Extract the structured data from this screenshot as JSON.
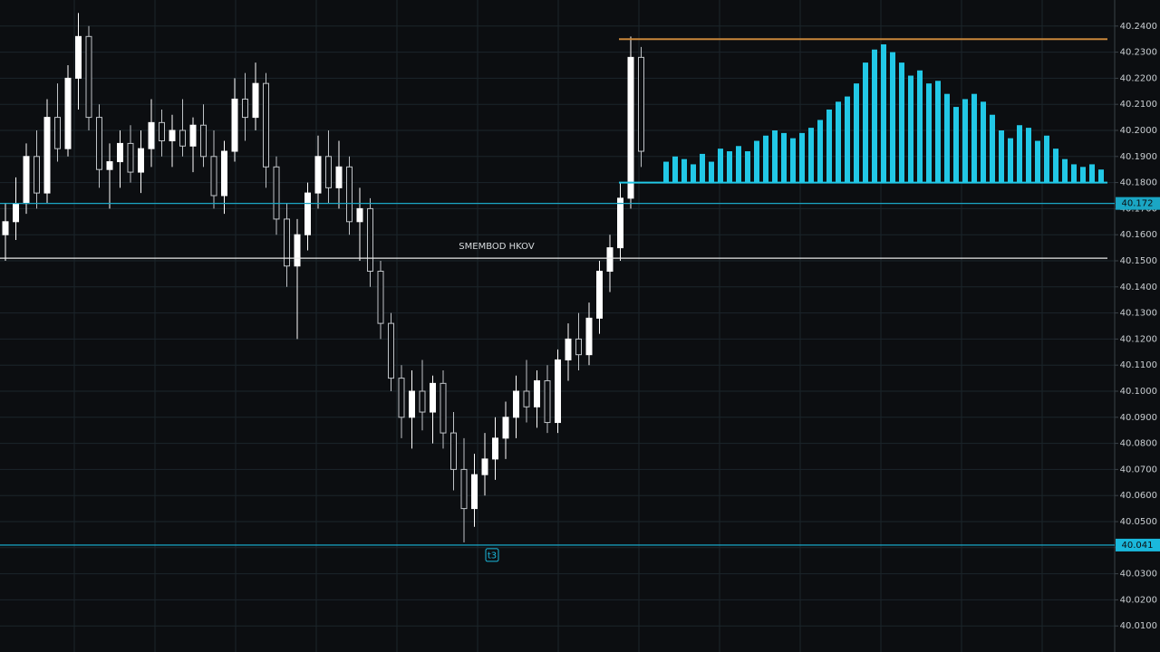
{
  "chart_data": {
    "type": "candlestick",
    "ylim": [
      40.0,
      40.25
    ],
    "yticks": [
      {
        "value": 40.24,
        "label": "40.2400"
      },
      {
        "value": 40.23,
        "label": "40.2300"
      },
      {
        "value": 40.22,
        "label": "40.2200"
      },
      {
        "value": 40.21,
        "label": "40.2100"
      },
      {
        "value": 40.2,
        "label": "40.2000"
      },
      {
        "value": 40.19,
        "label": "40.1900"
      },
      {
        "value": 40.18,
        "label": "40.1800"
      },
      {
        "value": 40.17,
        "label": "40.1700"
      },
      {
        "value": 40.16,
        "label": "40.1600"
      },
      {
        "value": 40.15,
        "label": "40.1500"
      },
      {
        "value": 40.14,
        "label": "40.1400"
      },
      {
        "value": 40.13,
        "label": "40.1300"
      },
      {
        "value": 40.12,
        "label": "40.1200"
      },
      {
        "value": 40.11,
        "label": "40.1100"
      },
      {
        "value": 40.1,
        "label": "40.1000"
      },
      {
        "value": 40.09,
        "label": "40.0900"
      },
      {
        "value": 40.08,
        "label": "40.0800"
      },
      {
        "value": 40.07,
        "label": "40.0700"
      },
      {
        "value": 40.06,
        "label": "40.0600"
      },
      {
        "value": 40.05,
        "label": "40.0500"
      },
      {
        "value": 40.04,
        "label": "40.0400"
      },
      {
        "value": 40.03,
        "label": "40.0300"
      },
      {
        "value": 40.02,
        "label": "40.0200"
      },
      {
        "value": 40.01,
        "label": "40.0100"
      }
    ],
    "grid": true,
    "up_color": "#ffffff",
    "down_color": "#bfc3c7",
    "open": [
      40.16,
      40.165,
      40.172,
      40.19,
      40.176,
      40.205,
      40.193,
      40.22,
      40.236,
      40.205,
      40.185,
      40.188,
      40.195,
      40.184,
      40.193,
      40.203,
      40.196,
      40.2,
      40.194,
      40.202,
      40.19,
      40.175,
      40.192,
      40.212,
      40.205,
      40.218,
      40.186,
      40.166,
      40.148,
      40.16,
      40.176,
      40.19,
      40.178,
      40.186,
      40.165,
      40.17,
      40.146,
      40.126,
      40.105,
      40.09,
      40.1,
      40.092,
      40.103,
      40.084,
      40.07,
      40.055,
      40.068,
      40.074,
      40.082,
      40.09,
      40.1,
      40.094,
      40.104,
      40.088,
      40.112,
      40.12,
      40.114,
      40.128,
      40.146,
      40.155,
      40.174,
      40.228
    ],
    "high": [
      40.172,
      40.182,
      40.195,
      40.2,
      40.212,
      40.218,
      40.225,
      40.245,
      40.24,
      40.21,
      40.195,
      40.2,
      40.202,
      40.2,
      40.212,
      40.208,
      40.206,
      40.212,
      40.205,
      40.21,
      40.2,
      40.196,
      40.22,
      40.222,
      40.226,
      40.222,
      40.19,
      40.172,
      40.166,
      40.18,
      40.198,
      40.2,
      40.196,
      40.19,
      40.178,
      40.174,
      40.15,
      40.13,
      40.11,
      40.108,
      40.112,
      40.106,
      40.108,
      40.092,
      40.082,
      40.076,
      40.084,
      40.09,
      40.096,
      40.106,
      40.112,
      40.108,
      40.11,
      40.116,
      40.126,
      40.13,
      40.134,
      40.15,
      40.16,
      40.18,
      40.236,
      40.232
    ],
    "low": [
      40.15,
      40.158,
      40.168,
      40.17,
      40.172,
      40.188,
      40.19,
      40.208,
      40.2,
      40.178,
      40.17,
      40.178,
      40.18,
      40.176,
      40.186,
      40.19,
      40.186,
      40.19,
      40.184,
      40.186,
      40.17,
      40.168,
      40.188,
      40.196,
      40.2,
      40.178,
      40.16,
      40.14,
      40.12,
      40.154,
      40.17,
      40.172,
      40.17,
      40.16,
      40.15,
      40.14,
      40.12,
      40.1,
      40.082,
      40.078,
      40.085,
      40.08,
      40.078,
      40.062,
      40.042,
      40.048,
      40.06,
      40.066,
      40.074,
      40.082,
      40.088,
      40.086,
      40.084,
      40.084,
      40.104,
      40.108,
      40.11,
      40.122,
      40.138,
      40.15,
      40.17,
      40.186
    ],
    "close": [
      40.165,
      40.172,
      40.19,
      40.176,
      40.205,
      40.193,
      40.22,
      40.236,
      40.205,
      40.185,
      40.188,
      40.195,
      40.184,
      40.193,
      40.203,
      40.196,
      40.2,
      40.194,
      40.202,
      40.19,
      40.175,
      40.192,
      40.212,
      40.205,
      40.218,
      40.186,
      40.166,
      40.148,
      40.16,
      40.176,
      40.19,
      40.178,
      40.186,
      40.165,
      40.17,
      40.146,
      40.126,
      40.105,
      40.09,
      40.1,
      40.092,
      40.103,
      40.084,
      40.07,
      40.055,
      40.068,
      40.074,
      40.082,
      40.09,
      40.1,
      40.094,
      40.104,
      40.088,
      40.112,
      40.12,
      40.114,
      40.128,
      40.146,
      40.155,
      40.174,
      40.228,
      40.192
    ],
    "histogram": {
      "color": "#22c8e6",
      "base": 40.18,
      "values": [
        40.188,
        40.19,
        40.189,
        40.187,
        40.191,
        40.188,
        40.193,
        40.192,
        40.194,
        40.192,
        40.196,
        40.198,
        40.2,
        40.199,
        40.197,
        40.199,
        40.201,
        40.204,
        40.208,
        40.211,
        40.213,
        40.218,
        40.226,
        40.231,
        40.233,
        40.23,
        40.226,
        40.221,
        40.223,
        40.218,
        40.219,
        40.214,
        40.209,
        40.212,
        40.214,
        40.211,
        40.206,
        40.2,
        40.197,
        40.202,
        40.201,
        40.196,
        40.198,
        40.193,
        40.189,
        40.187,
        40.186,
        40.187,
        40.185
      ]
    },
    "levels": [
      {
        "value": 40.235,
        "color": "#c8863a",
        "partial": true
      },
      {
        "value": 40.172,
        "color": "#1aa6c4",
        "tag": true
      },
      {
        "value": 40.151,
        "color": "#e8e8e8",
        "label": "SMEMBOD HKOV"
      },
      {
        "value": 40.041,
        "color": "#1ab8dc",
        "tag": true,
        "marker": "t3"
      }
    ]
  }
}
